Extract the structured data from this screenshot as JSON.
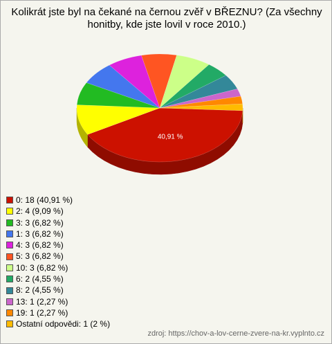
{
  "chart_data": {
    "type": "pie3d",
    "title": "Kolikrát jste byl na čekané na černou zvěř v BŘEZNU? (Za všechny honitby, kde jste lovil v roce 2010.)",
    "categories": [
      "0: 18 (40,91 %)",
      "2: 4 (9,09 %)",
      "3: 3 (6,82 %)",
      "1: 3 (6,82 %)",
      "4: 3 (6,82 %)",
      "5: 3 (6,82 %)",
      "10: 3 (6,82 %)",
      "6: 2 (4,55 %)",
      "8: 2 (4,55 %)",
      "13: 1 (2,27 %)",
      "19: 1 (2,27 %)",
      "Ostatní odpovědi: 1 (2 %)"
    ],
    "values": [
      40.91,
      9.09,
      6.82,
      6.82,
      6.82,
      6.82,
      6.82,
      4.55,
      4.55,
      2.27,
      2.27,
      2
    ],
    "value_labels": [
      "40,91 %",
      null,
      null,
      null,
      null,
      null,
      null,
      null,
      null,
      null,
      null,
      null
    ],
    "colors": [
      "#cc1100",
      "#ffff00",
      "#22bb22",
      "#4477ee",
      "#dd22dd",
      "#ff5522",
      "#ccff88",
      "#22aa66",
      "#338899",
      "#cc66cc",
      "#ff8800",
      "#ffbb00"
    ],
    "source": "zdroj: https://chov-a-lov-cerne-zvere-na-kr.vyplnto.cz"
  }
}
